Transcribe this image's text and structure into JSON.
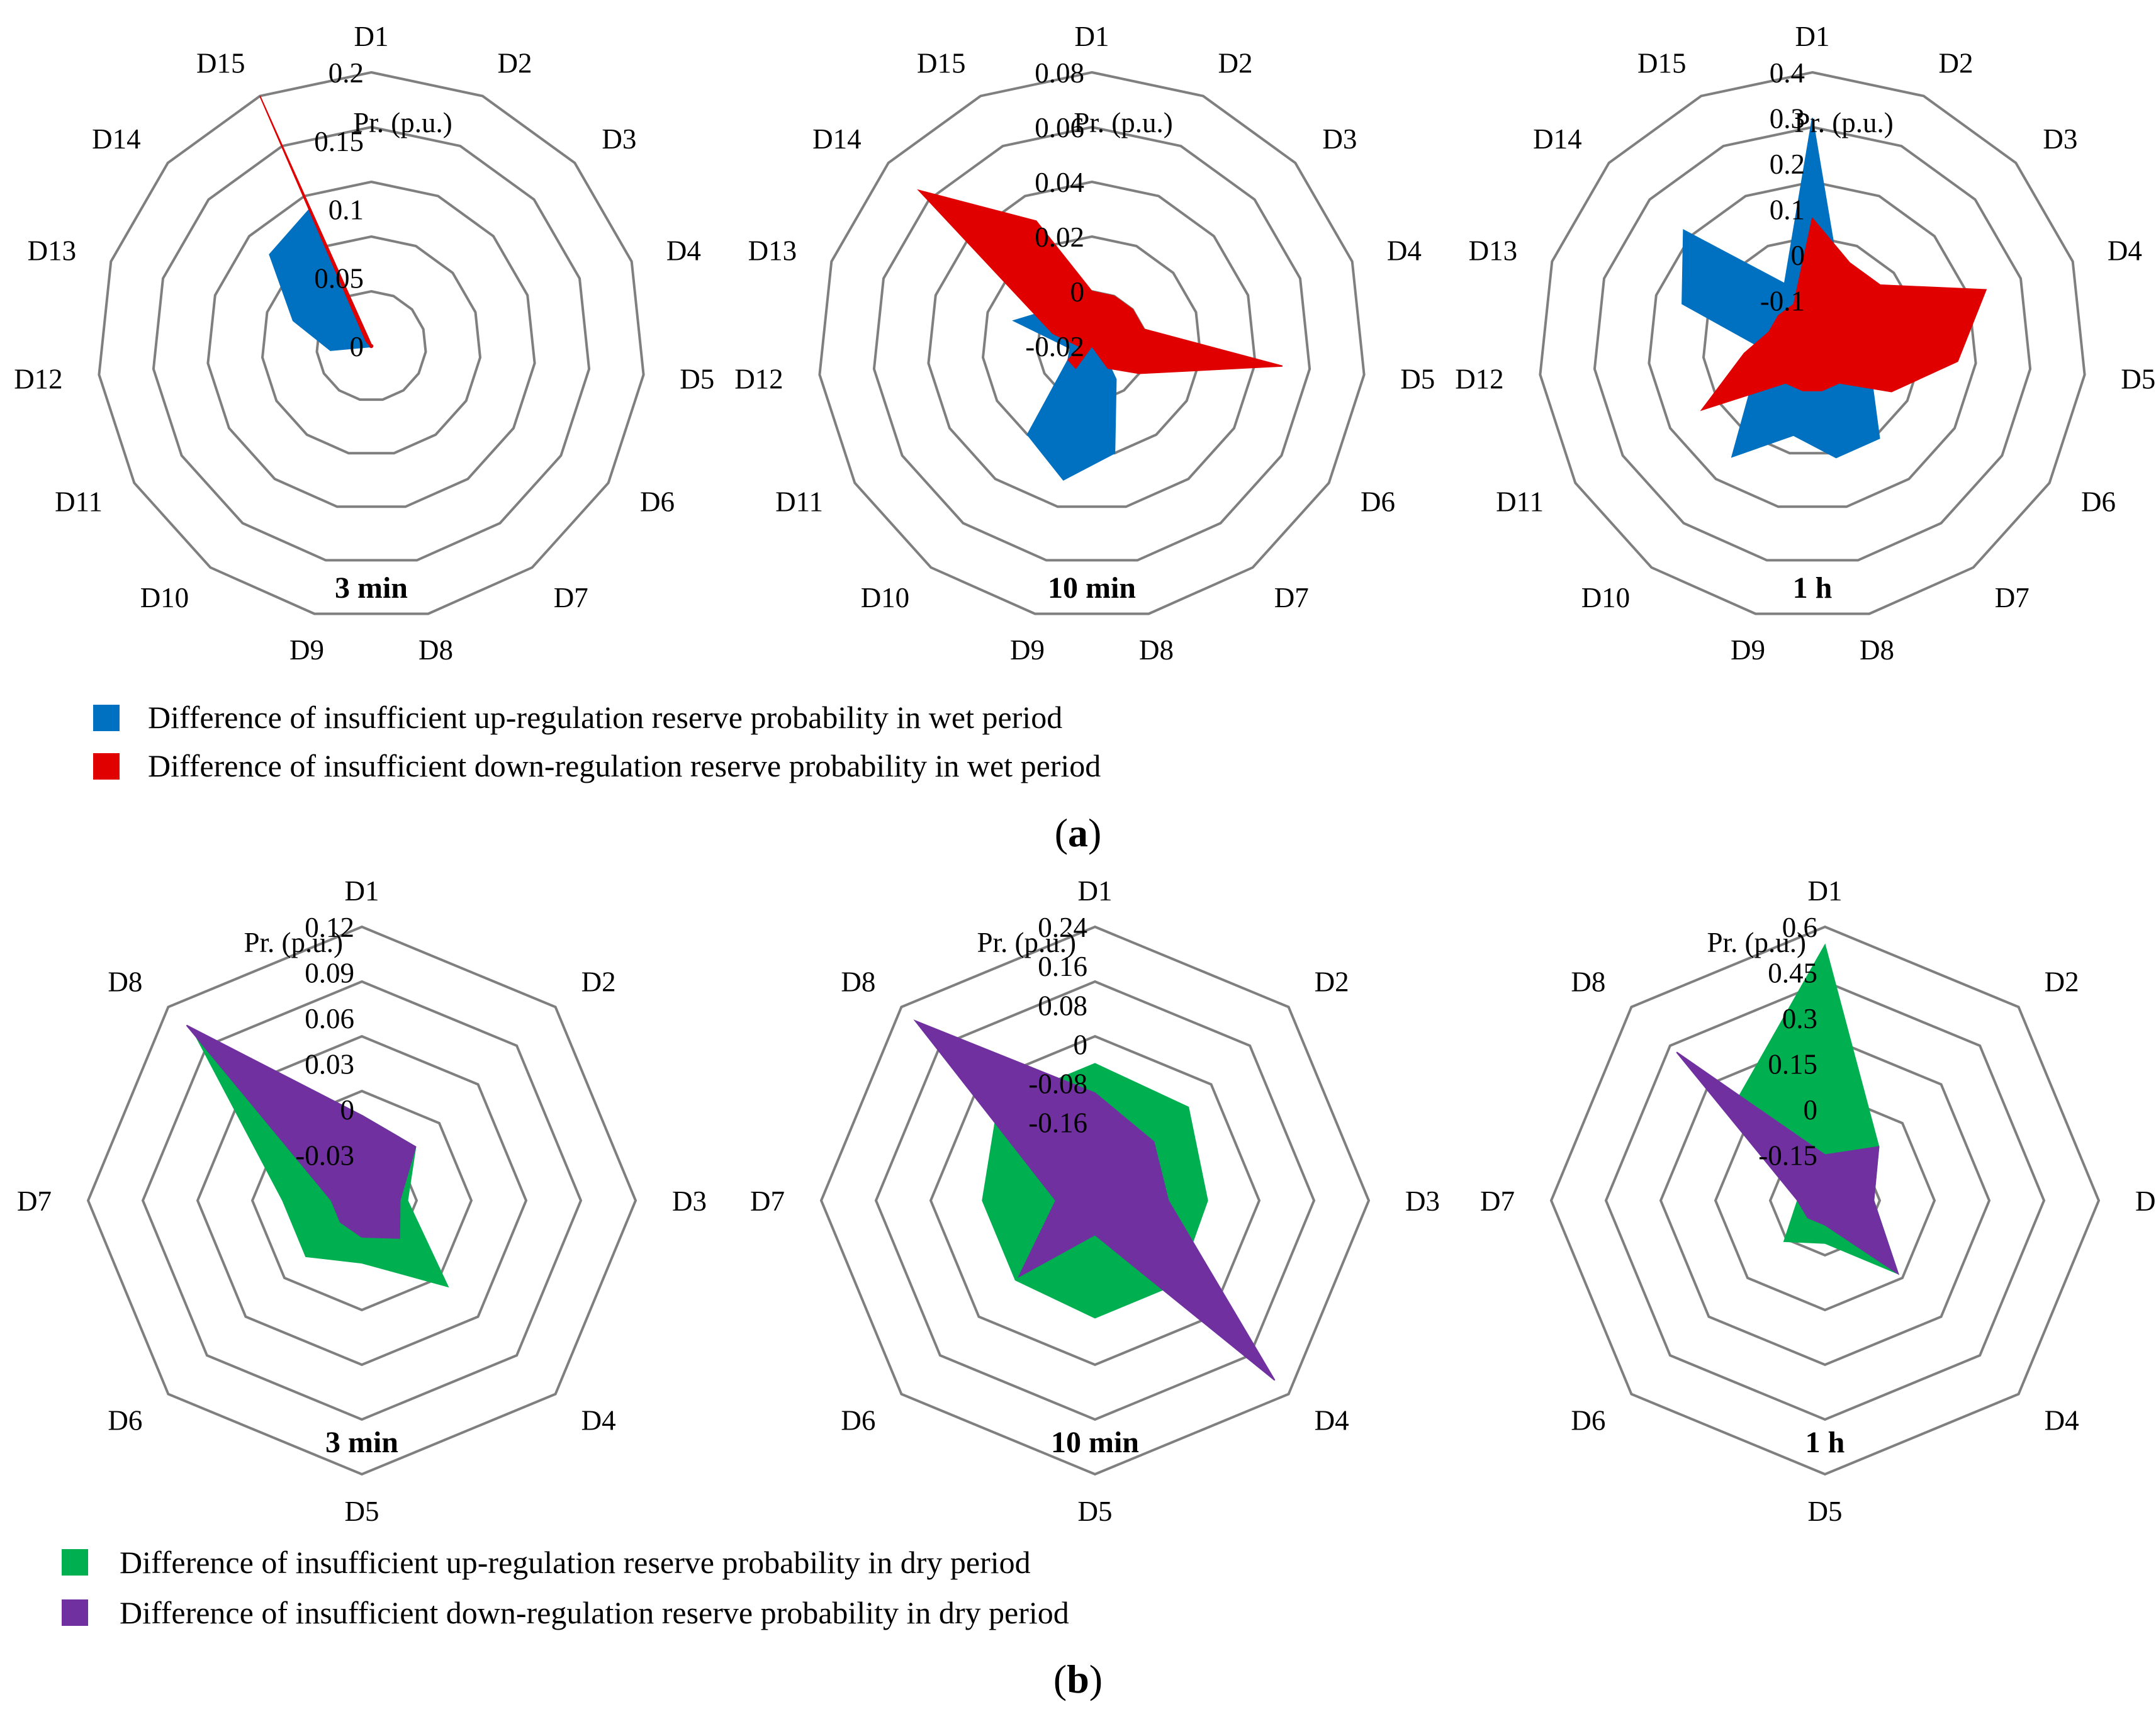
{
  "panel_a": {
    "label": "a",
    "legend": [
      {
        "text": "Difference of insufficient up-regulation reserve probability in wet period",
        "color": "#0070c0"
      },
      {
        "text": "Difference of insufficient down-regulation reserve probability in wet period",
        "color": "#e00000"
      }
    ]
  },
  "panel_b": {
    "label": "b",
    "legend": [
      {
        "text": "Difference of insufficient up-regulation reserve probability in dry period",
        "color": "#00b050"
      },
      {
        "text": "Difference of insufficient down-regulation reserve probability in dry period",
        "color": "#7030a0"
      }
    ]
  },
  "chart_data": [
    {
      "type": "radar",
      "panel": "a",
      "title": "3 min",
      "unit_label": "Pr. (p.u.)",
      "categories": [
        "D1",
        "D2",
        "D3",
        "D4",
        "D5",
        "D6",
        "D7",
        "D8",
        "D9",
        "D10",
        "D11",
        "D12",
        "D13",
        "D14",
        "D15"
      ],
      "ticks": [
        "0",
        "0.05",
        "0.1",
        "0.15",
        "0.2"
      ],
      "range": [
        0,
        0.2
      ],
      "series": [
        {
          "color": "#0070c0",
          "values": [
            0.001,
            0.001,
            0.001,
            0.001,
            0.001,
            0.001,
            0.001,
            0.001,
            0.001,
            0.001,
            0.001,
            0.03,
            0.06,
            0.1,
            0.11
          ]
        },
        {
          "color": "#e00000",
          "values": [
            0.001,
            0.001,
            0.001,
            0.001,
            0.001,
            0.001,
            0.001,
            0.001,
            0.001,
            0.001,
            0.001,
            0.001,
            0.001,
            0.005,
            0.2
          ]
        }
      ]
    },
    {
      "type": "radar",
      "panel": "a",
      "title": "10 min",
      "unit_label": "Pr. (p.u.)",
      "categories": [
        "D1",
        "D2",
        "D3",
        "D4",
        "D5",
        "D6",
        "D7",
        "D8",
        "D9",
        "D10",
        "D11",
        "D12",
        "D13",
        "D14",
        "D15"
      ],
      "ticks": [
        "-0.02",
        "0",
        "0.02",
        "0.04",
        "0.06",
        "0.08"
      ],
      "range": [
        -0.02,
        0.08
      ],
      "series": [
        {
          "color": "#0070c0",
          "values": [
            -0.002,
            -0.005,
            -0.01,
            -0.012,
            -0.014,
            -0.015,
            -0.005,
            0.02,
            0.03,
            0.02,
            -0.01,
            -0.012,
            0.01,
            0.0,
            0.0
          ]
        },
        {
          "color": "#e00000",
          "values": [
            0.0,
            0.0,
            0.0,
            0.0,
            0.05,
            0.0,
            -0.01,
            -0.02,
            -0.02,
            -0.01,
            -0.01,
            -0.016,
            -0.005,
            0.065,
            0.03
          ]
        }
      ]
    },
    {
      "type": "radar",
      "panel": "a",
      "title": "1 h",
      "unit_label": "Pr. (p.u.)",
      "categories": [
        "D1",
        "D2",
        "D3",
        "D4",
        "D5",
        "D6",
        "D7",
        "D8",
        "D9",
        "D10",
        "D11",
        "D12",
        "D13",
        "D14",
        "D15"
      ],
      "ticks": [
        "-0.1",
        "0",
        "0.1",
        "0.2",
        "0.3",
        "0.4"
      ],
      "range": [
        -0.2,
        0.4
      ],
      "series": [
        {
          "color": "#0070c0",
          "values": [
            0.3,
            -0.05,
            -0.05,
            -0.1,
            -0.1,
            -0.05,
            0.05,
            0.05,
            0.0,
            0.1,
            -0.05,
            -0.1,
            0.1,
            0.18,
            -0.05
          ]
        },
        {
          "color": "#e00000",
          "values": [
            0.08,
            0.0,
            0.0,
            0.2,
            0.12,
            0.0,
            -0.1,
            -0.1,
            -0.1,
            -0.1,
            0.08,
            -0.05,
            -0.1,
            -0.1,
            -0.1
          ]
        }
      ]
    },
    {
      "type": "radar",
      "panel": "b",
      "title": "3 min",
      "unit_label": "Pr. (p.u.)",
      "categories": [
        "D1",
        "D2",
        "D3",
        "D4",
        "D5",
        "D6",
        "D7",
        "D8"
      ],
      "ticks": [
        "-0.03",
        "0",
        "0.03",
        "0.06",
        "0.09",
        "0.12"
      ],
      "range": [
        -0.06,
        0.12
      ],
      "series": [
        {
          "color": "#00b050",
          "values": [
            -0.004,
            -0.01,
            -0.03,
            0.02,
            -0.019,
            -0.008,
            -0.008,
            0.096
          ]
        },
        {
          "color": "#7030a0",
          "values": [
            -0.004,
            -0.01,
            -0.035,
            -0.025,
            -0.036,
            -0.04,
            -0.04,
            0.103
          ]
        }
      ]
    },
    {
      "type": "radar",
      "panel": "b",
      "title": "10 min",
      "unit_label": "Pr. (p.u.)",
      "categories": [
        "D1",
        "D2",
        "D3",
        "D4",
        "D5",
        "D6",
        "D7",
        "D8"
      ],
      "ticks": [
        "-0.16",
        "-0.08",
        "0",
        "0.08",
        "0.16",
        "0.24"
      ],
      "range": [
        -0.32,
        0.24
      ],
      "series": [
        {
          "color": "#00b050",
          "values": [
            -0.04,
            -0.05,
            -0.09,
            -0.08,
            -0.08,
            -0.09,
            -0.09,
            -0.04
          ]
        },
        {
          "color": "#7030a0",
          "values": [
            -0.1,
            -0.15,
            -0.17,
            0.2,
            -0.25,
            -0.1,
            -0.24,
            0.2
          ]
        }
      ]
    },
    {
      "type": "radar",
      "panel": "b",
      "title": "1 h",
      "unit_label": "Pr. (p.u.)",
      "categories": [
        "D1",
        "D2",
        "D3",
        "D4",
        "D5",
        "D6",
        "D7",
        "D8"
      ],
      "ticks": [
        "-0.15",
        "0",
        "0.15",
        "0.3",
        "0.45",
        "0.6"
      ],
      "range": [
        -0.3,
        0.6
      ],
      "series": [
        {
          "color": "#00b050",
          "values": [
            0.54,
            -0.05,
            -0.14,
            0.04,
            -0.16,
            -0.11,
            -0.21,
            0.13
          ]
        },
        {
          "color": "#7030a0",
          "values": [
            -0.15,
            -0.05,
            -0.14,
            0.04,
            -0.22,
            -0.22,
            -0.21,
            0.39
          ]
        }
      ]
    }
  ]
}
